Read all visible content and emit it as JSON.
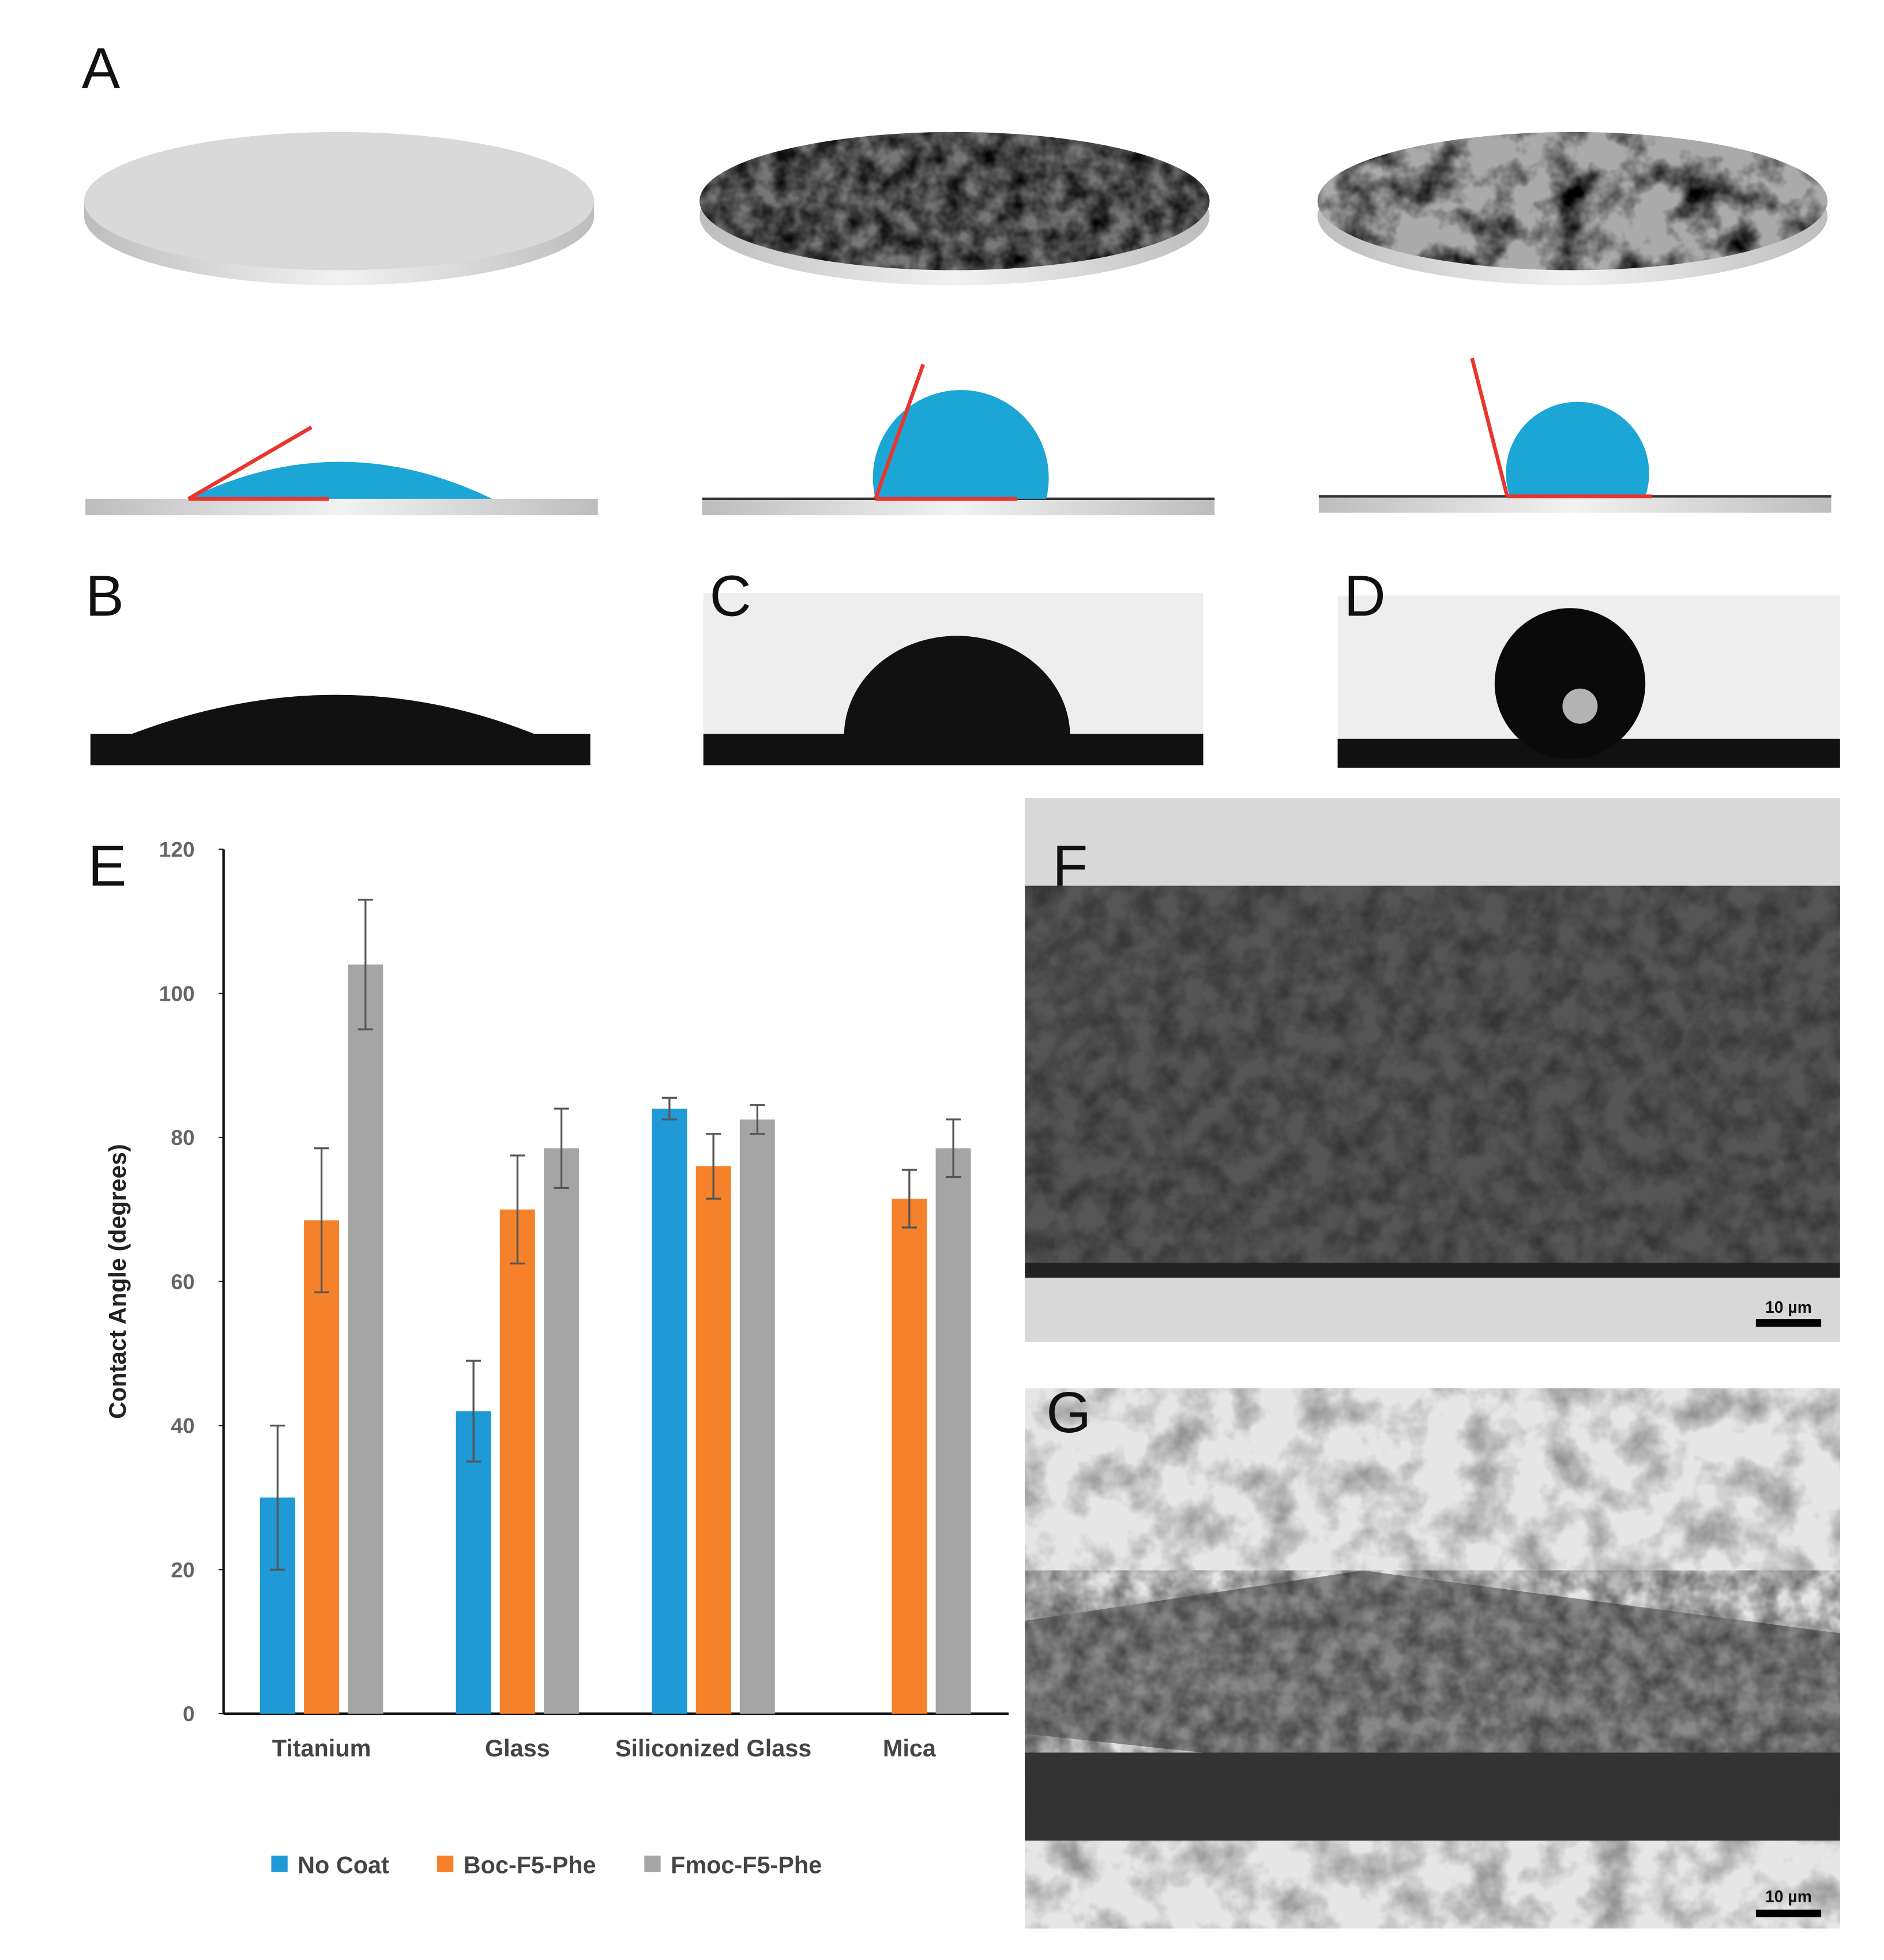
{
  "panel_labels": [
    "A",
    "B",
    "C",
    "D",
    "E",
    "F",
    "G"
  ],
  "scale_bars": [
    "10 µm",
    "10 µm"
  ],
  "chart_data": {
    "type": "bar",
    "ylabel": "Contact Angle (degrees)",
    "categories": [
      "Titanium",
      "Glass",
      "Siliconized Glass",
      "Mica"
    ],
    "series": [
      {
        "name": "No Coat",
        "color": "#1f9ad6",
        "values": [
          30,
          42,
          84,
          null
        ],
        "errors": [
          10,
          7,
          1.5,
          null
        ]
      },
      {
        "name": "Boc-F5-Phe",
        "color": "#f5822a",
        "values": [
          68.5,
          70,
          76,
          71.5
        ],
        "errors": [
          10,
          7.5,
          4.5,
          4
        ]
      },
      {
        "name": "Fmoc-F5-Phe",
        "color": "#a5a5a5",
        "values": [
          104,
          78.5,
          82.5,
          78.5
        ],
        "errors": [
          9,
          5.5,
          2,
          4
        ]
      }
    ],
    "ylim": [
      0,
      120
    ],
    "yticks": [
      0,
      20,
      40,
      60,
      80,
      100,
      120
    ],
    "legend": "bottom",
    "grid": false
  }
}
